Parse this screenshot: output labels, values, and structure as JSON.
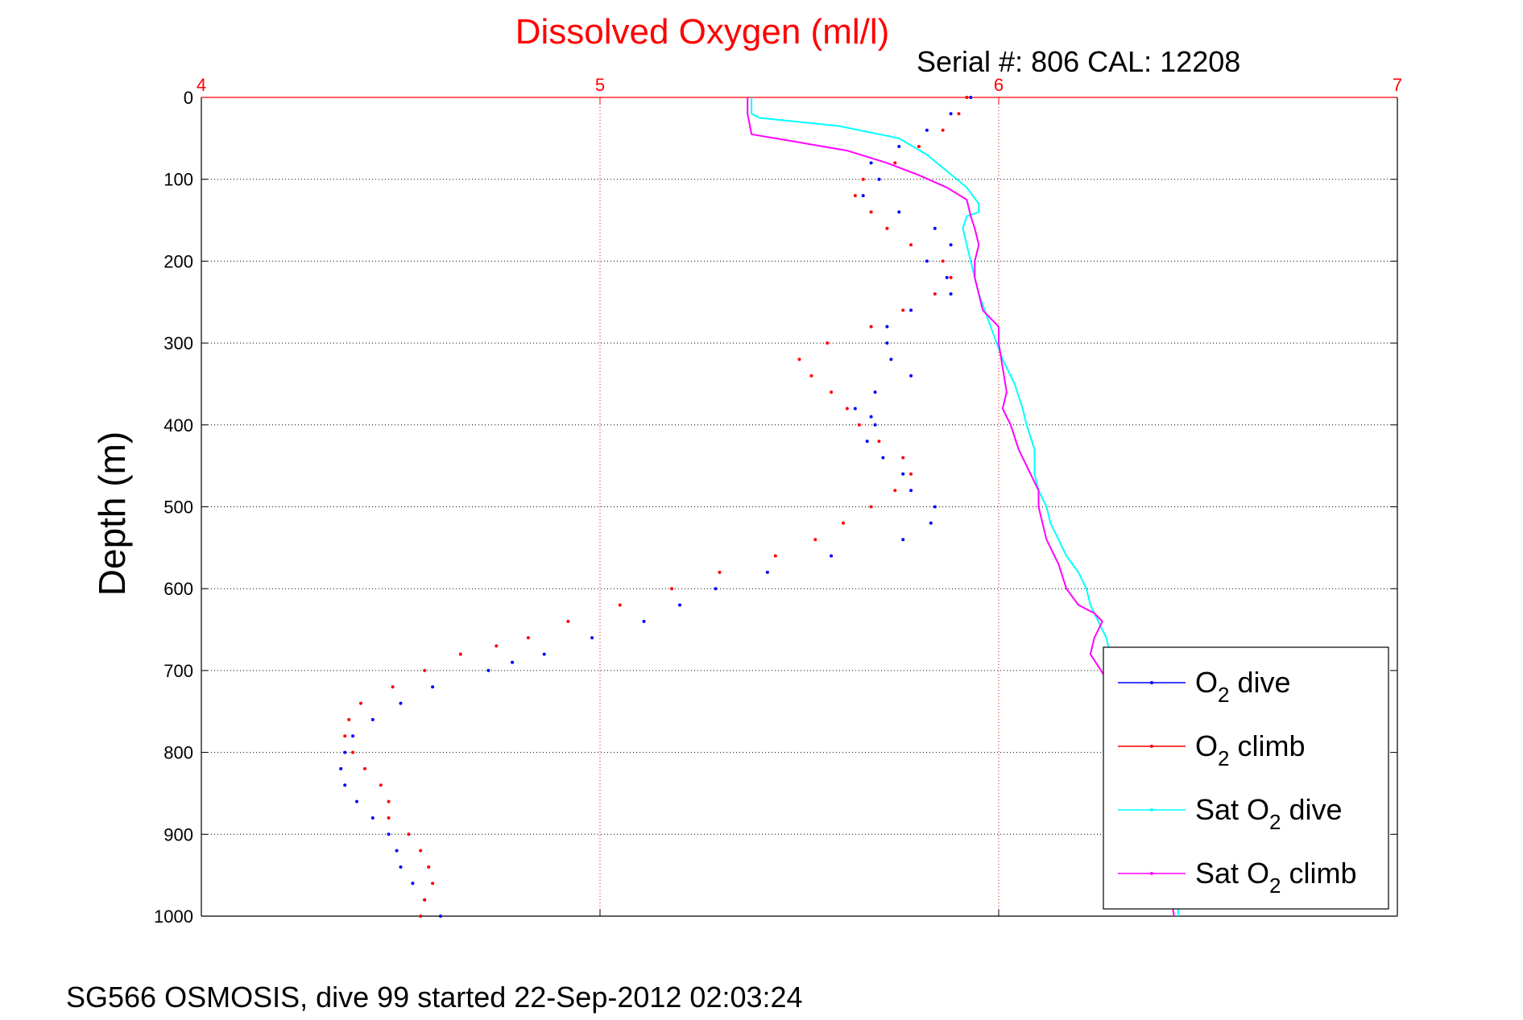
{
  "chart_data": {
    "type": "scatter",
    "title": "Dissolved Oxygen (ml/l)",
    "subtitle": "Serial #: 806  CAL: 12208",
    "footer": "SG566 OSMOSIS, dive 99 started 22-Sep-2012 02:03:24",
    "xlabel": "",
    "ylabel": "Depth (m)",
    "xlim": [
      4,
      7
    ],
    "ylim": [
      0,
      1000
    ],
    "y_reversed": true,
    "x_ticks": [
      "4",
      "5",
      "6",
      "7"
    ],
    "y_ticks": [
      "0",
      "100",
      "200",
      "300",
      "400",
      "500",
      "600",
      "700",
      "800",
      "900",
      "1000"
    ],
    "x_axis_position": "top",
    "grid": true,
    "legend_position": "bottom-right",
    "colors": {
      "title": "#ff0000",
      "x_axis": "#ff0000",
      "x_grid": "#ff0000",
      "y_grid": "#000000"
    },
    "series": [
      {
        "name": "O2 dive",
        "legend_main": "O",
        "legend_sub": "2",
        "legend_rest": " dive",
        "style": "points",
        "color": "#0000ff",
        "x": [
          5.93,
          5.88,
          5.82,
          5.75,
          5.68,
          5.7,
          5.66,
          5.75,
          5.84,
          5.88,
          5.82,
          5.87,
          5.88,
          5.78,
          5.72,
          5.72,
          5.73,
          5.78,
          5.69,
          5.64,
          5.68,
          5.69,
          5.67,
          5.71,
          5.76,
          5.78,
          5.84,
          5.83,
          5.76,
          5.58,
          5.42,
          5.29,
          5.2,
          5.11,
          4.98,
          4.86,
          4.78,
          4.72,
          4.58,
          4.5,
          4.43,
          4.38,
          4.36,
          4.35,
          4.36,
          4.39,
          4.43,
          4.47,
          4.49,
          4.5,
          4.53,
          4.56,
          4.6
        ],
        "y": [
          0,
          20,
          40,
          60,
          80,
          100,
          120,
          140,
          160,
          180,
          200,
          220,
          240,
          260,
          280,
          300,
          320,
          340,
          360,
          380,
          390,
          400,
          420,
          440,
          460,
          480,
          500,
          520,
          540,
          560,
          580,
          600,
          620,
          640,
          660,
          680,
          690,
          700,
          720,
          740,
          760,
          780,
          800,
          820,
          840,
          860,
          880,
          900,
          920,
          940,
          960,
          980,
          1000
        ]
      },
      {
        "name": "O2 climb",
        "legend_main": "O",
        "legend_sub": "2",
        "legend_rest": " climb",
        "style": "points",
        "color": "#ff0000",
        "x": [
          5.92,
          5.9,
          5.86,
          5.8,
          5.74,
          5.66,
          5.64,
          5.68,
          5.72,
          5.78,
          5.86,
          5.88,
          5.84,
          5.76,
          5.68,
          5.57,
          5.5,
          5.53,
          5.58,
          5.62,
          5.65,
          5.7,
          5.76,
          5.78,
          5.74,
          5.68,
          5.61,
          5.54,
          5.44,
          5.3,
          5.18,
          5.05,
          4.92,
          4.82,
          4.74,
          4.65,
          4.56,
          4.48,
          4.4,
          4.37,
          4.36,
          4.38,
          4.41,
          4.45,
          4.47,
          4.47,
          4.52,
          4.55,
          4.57,
          4.58,
          4.56,
          4.55
        ],
        "y": [
          0,
          20,
          40,
          60,
          80,
          100,
          120,
          140,
          160,
          180,
          200,
          220,
          240,
          260,
          280,
          300,
          320,
          340,
          360,
          380,
          400,
          420,
          440,
          460,
          480,
          500,
          520,
          540,
          560,
          580,
          600,
          620,
          640,
          660,
          670,
          680,
          700,
          720,
          740,
          760,
          780,
          800,
          820,
          840,
          860,
          880,
          900,
          920,
          940,
          960,
          980,
          1000
        ]
      },
      {
        "name": "Sat O2 dive",
        "legend_main": "Sat O",
        "legend_sub": "2",
        "legend_rest": " dive",
        "style": "line",
        "color": "#00ffff",
        "x": [
          5.38,
          5.38,
          5.4,
          5.6,
          5.75,
          5.82,
          5.87,
          5.92,
          5.95,
          5.95,
          5.92,
          5.91,
          5.93,
          5.95,
          5.98,
          6.01,
          6.04,
          6.06,
          6.07,
          6.09,
          6.09,
          6.1,
          6.12,
          6.13,
          6.15,
          6.17,
          6.2,
          6.22,
          6.23,
          6.25,
          6.27,
          6.28,
          6.28,
          6.3,
          6.33,
          6.36,
          6.38,
          6.4,
          6.42,
          6.43,
          6.44,
          6.45,
          6.45
        ],
        "y": [
          0,
          20,
          25,
          35,
          50,
          70,
          90,
          110,
          130,
          140,
          145,
          160,
          200,
          240,
          280,
          320,
          350,
          380,
          400,
          430,
          460,
          480,
          500,
          520,
          540,
          560,
          580,
          600,
          620,
          640,
          660,
          680,
          700,
          720,
          750,
          780,
          810,
          840,
          870,
          900,
          930,
          960,
          1000
        ]
      },
      {
        "name": "Sat O2 climb",
        "legend_main": "Sat O",
        "legend_sub": "2",
        "legend_rest": " climb",
        "style": "line",
        "color": "#ff00ff",
        "x": [
          5.37,
          5.37,
          5.38,
          5.5,
          5.62,
          5.72,
          5.8,
          5.87,
          5.92,
          5.93,
          5.94,
          5.95,
          5.94,
          5.94,
          5.95,
          5.96,
          6.0,
          6.0,
          6.01,
          6.02,
          6.01,
          6.03,
          6.05,
          6.08,
          6.1,
          6.1,
          6.12,
          6.15,
          6.17,
          6.2,
          6.24,
          6.26,
          6.24,
          6.23,
          6.27,
          6.3,
          6.33,
          6.36,
          6.38,
          6.4,
          6.42,
          6.43,
          6.44
        ],
        "y": [
          0,
          20,
          45,
          55,
          65,
          80,
          95,
          110,
          125,
          145,
          160,
          180,
          200,
          220,
          240,
          260,
          280,
          300,
          330,
          360,
          380,
          400,
          430,
          460,
          480,
          500,
          540,
          570,
          600,
          620,
          630,
          640,
          660,
          680,
          710,
          740,
          780,
          820,
          860,
          900,
          940,
          970,
          1000
        ]
      }
    ]
  }
}
